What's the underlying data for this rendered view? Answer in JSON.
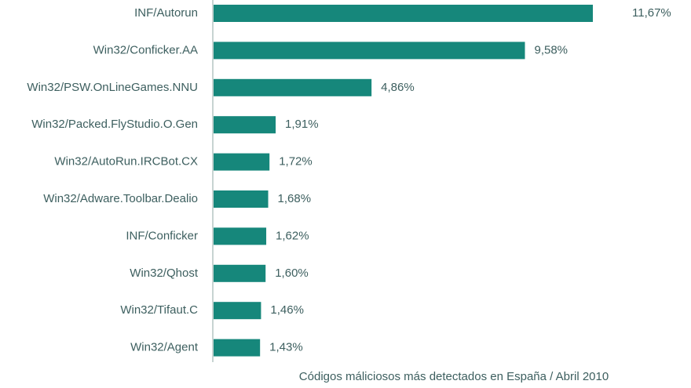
{
  "chart_data": {
    "type": "bar",
    "orientation": "horizontal",
    "title": "Códigos máliciosos más detectados en España / Abril 2010",
    "categories": [
      "INF/Autorun",
      "Win32/Conficker.AA",
      "Win32/PSW.OnLineGames.NNU",
      "Win32/Packed.FlyStudio.O.Gen",
      "Win32/AutoRun.IRCBot.CX",
      "Win32/Adware.Toolbar.Dealio",
      "INF/Conficker",
      "Win32/Qhost",
      "Win32/Tifaut.C",
      "Win32/Agent"
    ],
    "values": [
      11.67,
      9.58,
      4.86,
      1.91,
      1.72,
      1.68,
      1.62,
      1.6,
      1.46,
      1.43
    ],
    "value_labels": [
      "11,67%",
      "9,58%",
      "4,86%",
      "1,91%",
      "1,72%",
      "1,68%",
      "1,62%",
      "1,60%",
      "1,46%",
      "1,43%"
    ],
    "color": "#16877b"
  }
}
